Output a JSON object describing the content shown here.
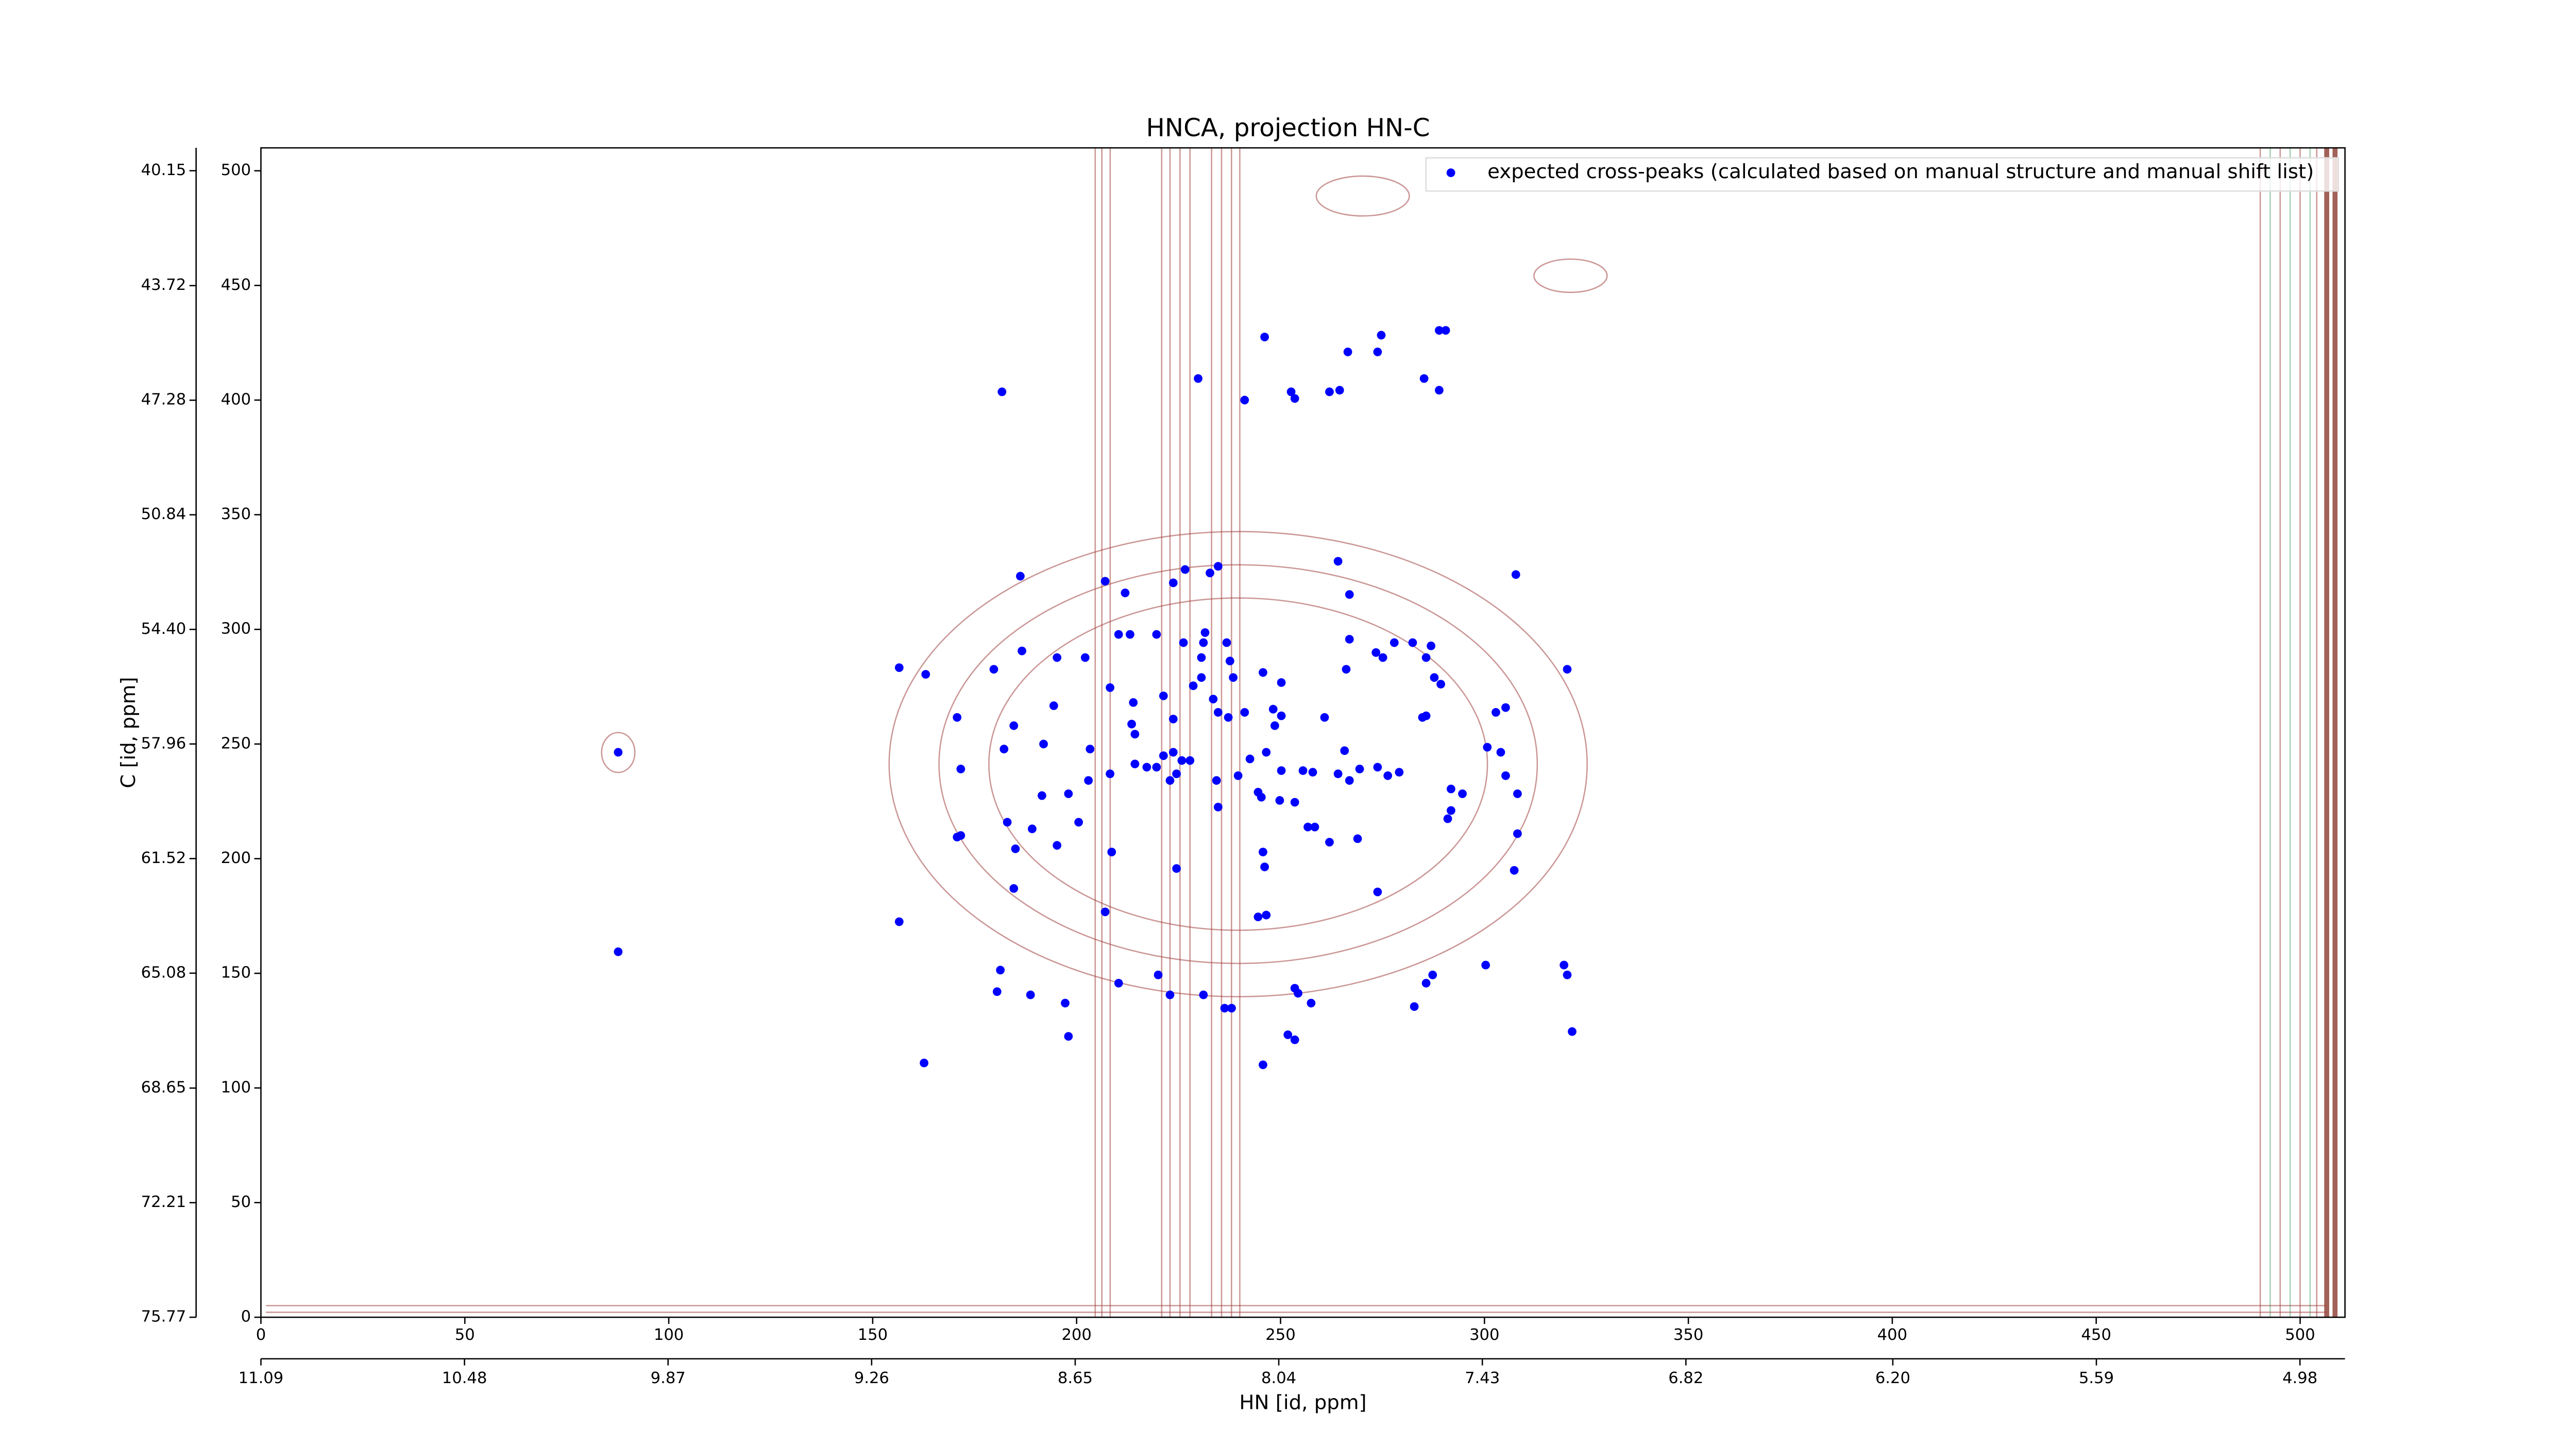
{
  "chart_data": {
    "type": "scatter",
    "title": "HNCA, projection HN-C",
    "x_label": "HN [id, ppm]",
    "y_label": "C [id, ppm]",
    "xlim": [
      0,
      511
    ],
    "ylim": [
      0,
      510
    ],
    "xticks": [
      0,
      50,
      100,
      150,
      200,
      250,
      300,
      350,
      400,
      450,
      500
    ],
    "yticks": [
      0,
      50,
      100,
      150,
      200,
      250,
      300,
      350,
      400,
      450,
      500
    ],
    "x2lim": [
      11.09,
      4.845
    ],
    "x2ticks": [
      11.09,
      10.48,
      9.87,
      9.26,
      8.65,
      8.04,
      7.43,
      6.82,
      {
        "value": 6.2,
        "label": "6.20"
      },
      5.59,
      4.98
    ],
    "y2lim": [
      75.77,
      39.44
    ],
    "y2ticks": [
      75.77,
      72.21,
      68.65,
      65.08,
      61.52,
      57.96,
      {
        "value": 54.4,
        "label": "54.40"
      },
      50.84,
      47.28,
      43.72,
      40.15
    ],
    "legend": "upper right",
    "series": [
      {
        "name": "expected cross-peaks (calculated based on manual structure and manual shift list)",
        "color": "#0000ff",
        "x": [
          181.7,
          229.8,
          241.2,
          246.1,
          253.5,
          252.6,
          262.0,
          264.5,
          266.5,
          274.7,
          273.8,
          285.2,
          288.9,
          290.5,
          288.9,
          211.9,
          207.0,
          223.7,
          226.6,
          232.7,
          234.7,
          264.1,
          266.9,
          307.7,
          186.2,
          156.5,
          163.0,
          179.7,
          186.6,
          195.2,
          202.1,
          210.3,
          213.1,
          219.6,
          226.2,
          231.1,
          231.5,
          230.6,
          236.8,
          237.6,
          230.6,
          238.4,
          245.7,
          250.2,
          266.9,
          266.1,
          273.4,
          277.9,
          282.4,
          286.9,
          285.7,
          287.7,
          289.3,
          275.1,
          320.3,
          170.7,
          184.6,
          194.4,
          208.2,
          213.9,
          221.3,
          223.7,
          228.6,
          233.5,
          234.7,
          237.2,
          241.2,
          248.2,
          250.2,
          248.6,
          260.8,
          285.7,
          284.8,
          302.8,
          305.2,
          171.6,
          182.2,
          191.9,
          203.3,
          213.5,
          214.3,
          214.3,
          208.2,
          217.2,
          219.6,
          221.3,
          223.7,
          222.9,
          224.5,
          225.8,
          227.8,
          234.3,
          239.6,
          242.5,
          246.5,
          244.5,
          245.3,
          249.8,
          253.5,
          250.2,
          255.5,
          257.9,
          264.1,
          265.7,
          266.9,
          269.4,
          273.8,
          276.3,
          279.1,
          291.8,
          291.8,
          294.6,
          300.7,
          304.0,
          305.2,
          308.1,
          191.5,
          198.0,
          202.9,
          234.7,
          170.7,
          171.6,
          183.0,
          189.1,
          200.5,
          185.0,
          195.2,
          208.6,
          224.5,
          245.7,
          246.1,
          256.7,
          258.4,
          262.0,
          268.9,
          273.8,
          291.0,
          308.1,
          307.3,
          184.6,
          156.5,
          244.5,
          246.5,
          207.0,
          181.3,
          180.5,
          188.7,
          197.2,
          198.0,
          210.3,
          220.0,
          222.9,
          231.1,
          236.3,
          238.0,
          253.5,
          254.3,
          251.8,
          253.5,
          257.5,
          245.7,
          282.8,
          285.7,
          287.3,
          300.3,
          319.5,
          320.3,
          321.5,
          162.6,
          87.6,
          87.6
        ],
        "values": [
          403.6,
          409.4,
          400.0,
          427.5,
          400.7,
          403.6,
          403.6,
          404.3,
          421.0,
          428.3,
          421.0,
          409.4,
          430.4,
          430.4,
          404.3,
          315.9,
          321.0,
          320.3,
          326.1,
          324.6,
          327.5,
          329.7,
          315.2,
          323.9,
          323.2,
          283.3,
          280.4,
          282.6,
          290.6,
          287.7,
          287.7,
          297.8,
          297.8,
          297.8,
          294.2,
          294.2,
          298.6,
          287.7,
          294.2,
          286.2,
          279.0,
          279.0,
          281.2,
          276.8,
          295.7,
          282.6,
          289.9,
          294.2,
          294.2,
          292.8,
          287.7,
          279.0,
          276.1,
          287.7,
          282.6,
          261.6,
          258.0,
          266.7,
          274.6,
          268.1,
          271.0,
          260.9,
          275.4,
          269.6,
          263.8,
          261.6,
          263.8,
          265.2,
          262.3,
          258.0,
          261.6,
          262.3,
          261.6,
          263.8,
          265.9,
          239.1,
          247.8,
          250.0,
          247.8,
          258.7,
          254.3,
          241.3,
          237.0,
          239.9,
          239.9,
          244.9,
          246.4,
          234.1,
          237.0,
          242.8,
          242.8,
          234.1,
          236.2,
          243.5,
          246.4,
          229.0,
          226.8,
          225.4,
          224.6,
          238.4,
          238.4,
          237.7,
          237.0,
          247.1,
          234.1,
          239.1,
          239.9,
          236.2,
          237.7,
          230.4,
          221.0,
          228.3,
          248.6,
          246.4,
          236.2,
          228.3,
          227.5,
          228.3,
          234.1,
          222.5,
          209.4,
          210.1,
          215.9,
          213.0,
          215.9,
          204.3,
          205.8,
          202.9,
          195.7,
          202.9,
          196.4,
          213.8,
          213.8,
          207.2,
          208.7,
          185.5,
          217.4,
          210.9,
          194.9,
          187.0,
          172.5,
          174.6,
          175.4,
          176.8,
          151.4,
          142.0,
          140.6,
          137.0,
          122.5,
          145.7,
          149.3,
          140.6,
          140.6,
          134.8,
          134.8,
          143.5,
          141.3,
          123.2,
          121.0,
          137.0,
          110.1,
          135.5,
          145.7,
          149.3,
          153.6,
          153.6,
          149.3,
          124.6,
          110.9,
          246.4,
          159.4
        ]
      }
    ]
  }
}
